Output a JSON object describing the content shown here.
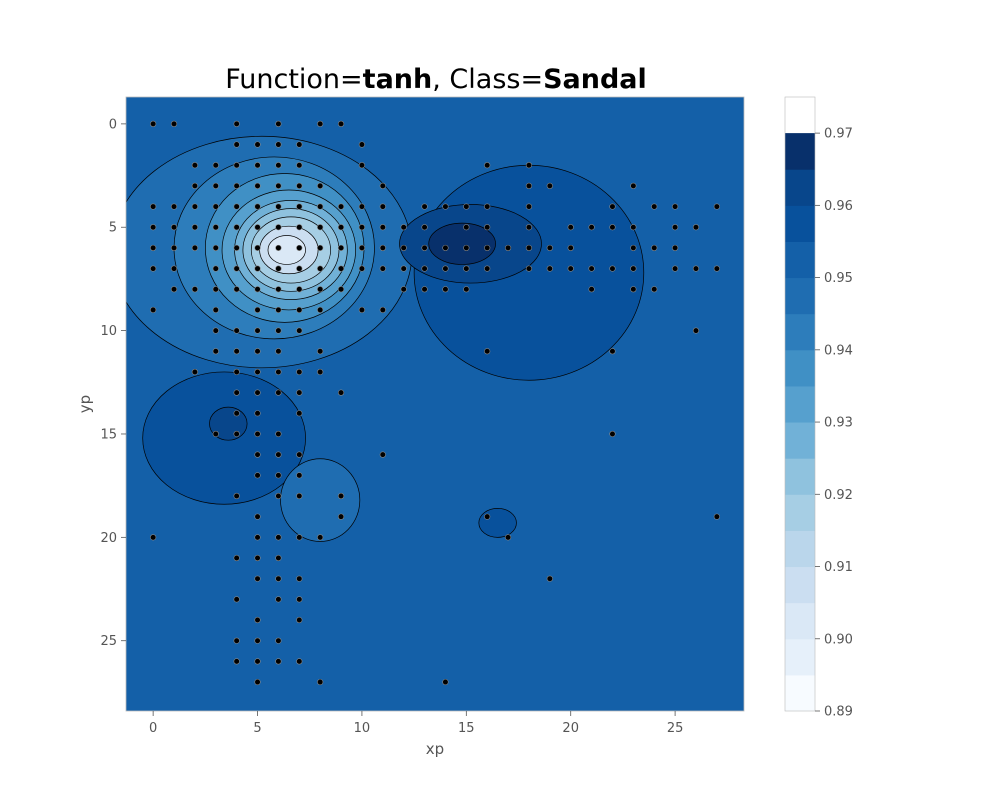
{
  "chart_data": {
    "type": "contour",
    "title": {
      "prefix": "Function=",
      "function": "tanh",
      "separator": ", Class=",
      "class": "Sandal"
    },
    "xlabel": "xp",
    "ylabel": "yp",
    "xlim": [
      -1.3,
      28.3
    ],
    "ylim": [
      28.4,
      -1.3
    ],
    "y_inverted": true,
    "x_ticks": [
      "0",
      "5",
      "10",
      "15",
      "20",
      "25"
    ],
    "y_ticks": [
      "0",
      "5",
      "10",
      "15",
      "20",
      "25"
    ],
    "colorbar": {
      "min": 0.89,
      "max": 0.975,
      "levels": [
        0.89,
        0.895,
        0.9,
        0.905,
        0.91,
        0.915,
        0.92,
        0.925,
        0.93,
        0.935,
        0.94,
        0.945,
        0.95,
        0.955,
        0.96,
        0.965,
        0.97,
        0.975
      ],
      "ticks": [
        "0.89",
        "0.90",
        "0.91",
        "0.92",
        "0.93",
        "0.94",
        "0.95",
        "0.96",
        "0.97"
      ],
      "colors": [
        "#f7fbff",
        "#e6f0fa",
        "#dae8f6",
        "#cbdef1",
        "#bad6eb",
        "#a6cee4",
        "#8fc2de",
        "#71b1d7",
        "#56a0ce",
        "#4090c5",
        "#2d7dbb",
        "#1f6db1",
        "#1460a8",
        "#08519c",
        "#08468b",
        "#08306b"
      ]
    },
    "background_value": 0.95,
    "regions": [
      {
        "name": "left-plateau",
        "value": 0.945,
        "cx": 5.2,
        "cy": 6.2,
        "rx": 7.2,
        "ry": 5.6
      },
      {
        "name": "left-shoulder",
        "value": 0.94,
        "cx": 5.8,
        "cy": 6.0,
        "rx": 4.8,
        "ry": 4.4
      },
      {
        "name": "ring-1",
        "value": 0.935,
        "cx": 6.3,
        "cy": 6.0,
        "rx": 3.8,
        "ry": 3.6
      },
      {
        "name": "ring-2",
        "value": 0.93,
        "cx": 6.5,
        "cy": 6.1,
        "rx": 3.2,
        "ry": 2.9
      },
      {
        "name": "ring-3",
        "value": 0.925,
        "cx": 6.6,
        "cy": 6.1,
        "rx": 2.7,
        "ry": 2.4
      },
      {
        "name": "ring-4",
        "value": 0.92,
        "cx": 6.6,
        "cy": 6.1,
        "rx": 2.3,
        "ry": 2.0
      },
      {
        "name": "ring-5",
        "value": 0.915,
        "cx": 6.6,
        "cy": 6.1,
        "rx": 1.9,
        "ry": 1.6
      },
      {
        "name": "ring-6",
        "value": 0.905,
        "cx": 6.5,
        "cy": 6.1,
        "rx": 1.4,
        "ry": 1.15
      },
      {
        "name": "core",
        "value": 0.9,
        "cx": 6.4,
        "cy": 6.1,
        "rx": 0.9,
        "ry": 0.7
      },
      {
        "name": "right-basin",
        "value": 0.955,
        "cx": 18.0,
        "cy": 7.2,
        "rx": 5.5,
        "ry": 5.2
      },
      {
        "name": "right-inner",
        "value": 0.96,
        "cx": 15.2,
        "cy": 5.8,
        "rx": 3.4,
        "ry": 1.9
      },
      {
        "name": "right-core",
        "value": 0.965,
        "cx": 14.8,
        "cy": 5.8,
        "rx": 1.6,
        "ry": 1.0
      },
      {
        "name": "lower-left-basin",
        "value": 0.955,
        "cx": 3.4,
        "cy": 15.2,
        "rx": 3.9,
        "ry": 3.2
      },
      {
        "name": "lower-left-core",
        "value": 0.96,
        "cx": 3.6,
        "cy": 14.5,
        "rx": 0.9,
        "ry": 0.8
      },
      {
        "name": "lower-mid-bump",
        "value": 0.945,
        "cx": 8.0,
        "cy": 18.2,
        "rx": 1.9,
        "ry": 2.0
      },
      {
        "name": "small-blob",
        "value": 0.955,
        "cx": 16.5,
        "cy": 19.3,
        "rx": 0.9,
        "ry": 0.7
      }
    ],
    "points": [
      [
        0,
        0
      ],
      [
        1,
        0
      ],
      [
        4,
        0
      ],
      [
        6,
        0
      ],
      [
        8,
        0
      ],
      [
        9,
        0
      ],
      [
        4,
        1
      ],
      [
        5,
        1
      ],
      [
        6,
        1
      ],
      [
        7,
        1
      ],
      [
        10,
        1
      ],
      [
        2,
        2
      ],
      [
        3,
        2
      ],
      [
        4,
        2
      ],
      [
        5,
        2
      ],
      [
        6,
        2
      ],
      [
        7,
        2
      ],
      [
        10,
        2
      ],
      [
        16,
        2
      ],
      [
        18,
        2
      ],
      [
        2,
        3
      ],
      [
        3,
        3
      ],
      [
        4,
        3
      ],
      [
        5,
        3
      ],
      [
        6,
        3
      ],
      [
        7,
        3
      ],
      [
        8,
        3
      ],
      [
        11,
        3
      ],
      [
        18,
        3
      ],
      [
        19,
        3
      ],
      [
        23,
        3
      ],
      [
        0,
        4
      ],
      [
        1,
        4
      ],
      [
        2,
        4
      ],
      [
        3,
        4
      ],
      [
        4,
        4
      ],
      [
        5,
        4
      ],
      [
        6,
        4
      ],
      [
        7,
        4
      ],
      [
        8,
        4
      ],
      [
        9,
        4
      ],
      [
        10,
        4
      ],
      [
        11,
        4
      ],
      [
        13,
        4
      ],
      [
        14,
        4
      ],
      [
        15,
        4
      ],
      [
        16,
        4
      ],
      [
        18,
        4
      ],
      [
        22,
        4
      ],
      [
        24,
        4
      ],
      [
        25,
        4
      ],
      [
        27,
        4
      ],
      [
        0,
        5
      ],
      [
        1,
        5
      ],
      [
        2,
        5
      ],
      [
        3,
        5
      ],
      [
        4,
        5
      ],
      [
        5,
        5
      ],
      [
        6,
        5
      ],
      [
        7,
        5
      ],
      [
        8,
        5
      ],
      [
        9,
        5
      ],
      [
        10,
        5
      ],
      [
        11,
        5
      ],
      [
        12,
        5
      ],
      [
        13,
        5
      ],
      [
        15,
        5
      ],
      [
        16,
        5
      ],
      [
        18,
        5
      ],
      [
        20,
        5
      ],
      [
        21,
        5
      ],
      [
        22,
        5
      ],
      [
        23,
        5
      ],
      [
        25,
        5
      ],
      [
        26,
        5
      ],
      [
        0,
        6
      ],
      [
        1,
        6
      ],
      [
        2,
        6
      ],
      [
        3,
        6
      ],
      [
        4,
        6
      ],
      [
        5,
        6
      ],
      [
        6,
        6
      ],
      [
        7,
        6
      ],
      [
        8,
        6
      ],
      [
        9,
        6
      ],
      [
        10,
        6
      ],
      [
        11,
        6
      ],
      [
        12,
        6
      ],
      [
        13,
        6
      ],
      [
        14,
        6
      ],
      [
        15,
        6
      ],
      [
        16,
        6
      ],
      [
        17,
        6
      ],
      [
        18,
        6
      ],
      [
        19,
        6
      ],
      [
        20,
        6
      ],
      [
        23,
        6
      ],
      [
        24,
        6
      ],
      [
        25,
        6
      ],
      [
        0,
        7
      ],
      [
        1,
        7
      ],
      [
        3,
        7
      ],
      [
        4,
        7
      ],
      [
        5,
        7
      ],
      [
        6,
        7
      ],
      [
        7,
        7
      ],
      [
        8,
        7
      ],
      [
        9,
        7
      ],
      [
        10,
        7
      ],
      [
        11,
        7
      ],
      [
        12,
        7
      ],
      [
        13,
        7
      ],
      [
        14,
        7
      ],
      [
        15,
        7
      ],
      [
        16,
        7
      ],
      [
        18,
        7
      ],
      [
        19,
        7
      ],
      [
        20,
        7
      ],
      [
        21,
        7
      ],
      [
        22,
        7
      ],
      [
        23,
        7
      ],
      [
        25,
        7
      ],
      [
        26,
        7
      ],
      [
        27,
        7
      ],
      [
        1,
        8
      ],
      [
        2,
        8
      ],
      [
        3,
        8
      ],
      [
        4,
        8
      ],
      [
        5,
        8
      ],
      [
        6,
        8
      ],
      [
        7,
        8
      ],
      [
        8,
        8
      ],
      [
        9,
        8
      ],
      [
        12,
        8
      ],
      [
        13,
        8
      ],
      [
        14,
        8
      ],
      [
        15,
        8
      ],
      [
        21,
        8
      ],
      [
        23,
        8
      ],
      [
        24,
        8
      ],
      [
        0,
        9
      ],
      [
        3,
        9
      ],
      [
        5,
        9
      ],
      [
        6,
        9
      ],
      [
        7,
        9
      ],
      [
        8,
        9
      ],
      [
        10,
        9
      ],
      [
        11,
        9
      ],
      [
        3,
        10
      ],
      [
        4,
        10
      ],
      [
        5,
        10
      ],
      [
        6,
        10
      ],
      [
        7,
        10
      ],
      [
        26,
        10
      ],
      [
        3,
        11
      ],
      [
        4,
        11
      ],
      [
        5,
        11
      ],
      [
        6,
        11
      ],
      [
        8,
        11
      ],
      [
        16,
        11
      ],
      [
        22,
        11
      ],
      [
        2,
        12
      ],
      [
        4,
        12
      ],
      [
        5,
        12
      ],
      [
        6,
        12
      ],
      [
        7,
        12
      ],
      [
        8,
        12
      ],
      [
        4,
        13
      ],
      [
        5,
        13
      ],
      [
        6,
        13
      ],
      [
        7,
        13
      ],
      [
        9,
        13
      ],
      [
        4,
        14
      ],
      [
        5,
        14
      ],
      [
        7,
        14
      ],
      [
        3,
        15
      ],
      [
        4,
        15
      ],
      [
        5,
        15
      ],
      [
        6,
        15
      ],
      [
        22,
        15
      ],
      [
        5,
        16
      ],
      [
        6,
        16
      ],
      [
        7,
        16
      ],
      [
        11,
        16
      ],
      [
        5,
        17
      ],
      [
        6,
        17
      ],
      [
        7,
        17
      ],
      [
        4,
        18
      ],
      [
        6,
        18
      ],
      [
        7,
        18
      ],
      [
        9,
        18
      ],
      [
        5,
        19
      ],
      [
        9,
        19
      ],
      [
        16,
        19
      ],
      [
        27,
        19
      ],
      [
        0,
        20
      ],
      [
        5,
        20
      ],
      [
        6,
        20
      ],
      [
        7,
        20
      ],
      [
        8,
        20
      ],
      [
        17,
        20
      ],
      [
        4,
        21
      ],
      [
        5,
        21
      ],
      [
        6,
        21
      ],
      [
        5,
        22
      ],
      [
        6,
        22
      ],
      [
        7,
        22
      ],
      [
        19,
        22
      ],
      [
        4,
        23
      ],
      [
        6,
        23
      ],
      [
        7,
        23
      ],
      [
        5,
        24
      ],
      [
        7,
        24
      ],
      [
        4,
        25
      ],
      [
        5,
        25
      ],
      [
        6,
        25
      ],
      [
        4,
        26
      ],
      [
        5,
        26
      ],
      [
        6,
        26
      ],
      [
        7,
        26
      ],
      [
        5,
        27
      ],
      [
        8,
        27
      ],
      [
        14,
        27
      ]
    ]
  }
}
